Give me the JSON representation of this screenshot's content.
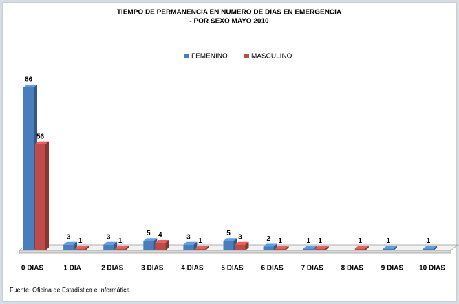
{
  "chart_data": {
    "type": "bar3d",
    "title": "TIEMPO DE PERMANENCIA EN NUMERO DE DIAS EN EMERGENCIA",
    "subtitle": "- POR SEXO MAYO 2010",
    "categories": [
      "0 DIAS",
      "1 DIA",
      "2 DIAS",
      "3 DIAS",
      "4 DIAS",
      "5 DIAS",
      "6 DIAS",
      "7 DIAS",
      "8 DIAS",
      "9 DIAS",
      "10 DIAS"
    ],
    "series": [
      {
        "name": "FEMENINO",
        "color": "#4a7ebb",
        "values": [
          86,
          3,
          3,
          5,
          3,
          5,
          2,
          1,
          null,
          1,
          1
        ]
      },
      {
        "name": "MASCULINO",
        "color": "#be4b48",
        "values": [
          56,
          1,
          1,
          4,
          1,
          3,
          1,
          1,
          1,
          null,
          null
        ]
      }
    ],
    "legend": "top",
    "source": "Fuente: Oficina de Estadística e Informática"
  }
}
